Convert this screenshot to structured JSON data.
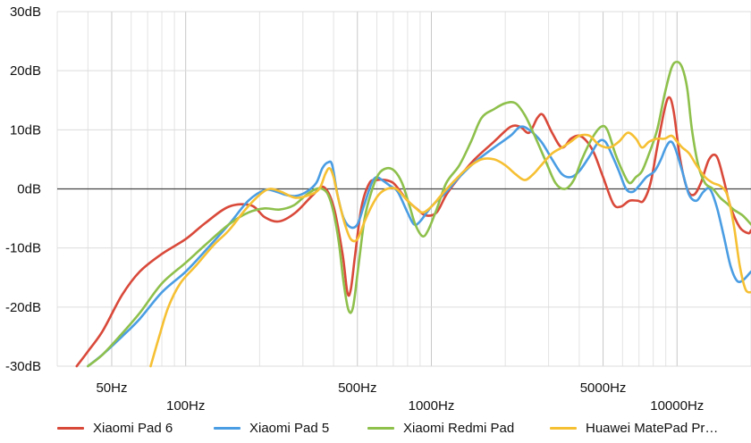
{
  "chart_data": {
    "type": "line",
    "x_scale": "log",
    "xlim": [
      30,
      20000
    ],
    "ylim": [
      -30,
      30
    ],
    "grid": true,
    "legend_position": "bottom",
    "y_ticks": [
      {
        "value": 30,
        "label": "30dB"
      },
      {
        "value": 20,
        "label": "20dB"
      },
      {
        "value": 10,
        "label": "10dB"
      },
      {
        "value": 0,
        "label": "0dB"
      },
      {
        "value": -10,
        "label": "-10dB"
      },
      {
        "value": -20,
        "label": "-20dB"
      },
      {
        "value": -30,
        "label": "-30dB"
      }
    ],
    "x_ticks": [
      {
        "value": 50,
        "label": "50Hz",
        "row": 1
      },
      {
        "value": 100,
        "label": "100Hz",
        "row": 2
      },
      {
        "value": 500,
        "label": "500Hz",
        "row": 1
      },
      {
        "value": 1000,
        "label": "1000Hz",
        "row": 2
      },
      {
        "value": 5000,
        "label": "5000Hz",
        "row": 1
      },
      {
        "value": 10000,
        "label": "10000Hz",
        "row": 2
      }
    ],
    "series": [
      {
        "name": "Xiaomi Pad 6",
        "color": "#d9493a",
        "points": [
          [
            36,
            -30
          ],
          [
            40,
            -27.5
          ],
          [
            46,
            -24
          ],
          [
            55,
            -18
          ],
          [
            65,
            -14
          ],
          [
            80,
            -11
          ],
          [
            100,
            -8.5
          ],
          [
            120,
            -5.8
          ],
          [
            150,
            -3
          ],
          [
            185,
            -2.8
          ],
          [
            210,
            -4.8
          ],
          [
            240,
            -5.5
          ],
          [
            280,
            -4
          ],
          [
            330,
            -1
          ],
          [
            365,
            0.3
          ],
          [
            400,
            -3
          ],
          [
            435,
            -11
          ],
          [
            455,
            -17.5
          ],
          [
            470,
            -17
          ],
          [
            490,
            -11
          ],
          [
            520,
            -3
          ],
          [
            560,
            1
          ],
          [
            600,
            1.5
          ],
          [
            650,
            1.5
          ],
          [
            700,
            1
          ],
          [
            750,
            -0.5
          ],
          [
            800,
            -2
          ],
          [
            880,
            -3.5
          ],
          [
            950,
            -4.5
          ],
          [
            1050,
            -4
          ],
          [
            1150,
            -1
          ],
          [
            1300,
            2
          ],
          [
            1500,
            5
          ],
          [
            1800,
            8
          ],
          [
            2100,
            10.5
          ],
          [
            2300,
            10.5
          ],
          [
            2500,
            9.5
          ],
          [
            2700,
            12
          ],
          [
            2850,
            12.5
          ],
          [
            3100,
            9.5
          ],
          [
            3400,
            7
          ],
          [
            3700,
            8.5
          ],
          [
            4000,
            9
          ],
          [
            4300,
            8
          ],
          [
            4600,
            6
          ],
          [
            5000,
            2
          ],
          [
            5500,
            -2.5
          ],
          [
            5900,
            -3
          ],
          [
            6400,
            -2
          ],
          [
            6900,
            -2
          ],
          [
            7300,
            -2
          ],
          [
            7800,
            1
          ],
          [
            8300,
            7
          ],
          [
            8900,
            13.5
          ],
          [
            9300,
            15.5
          ],
          [
            9700,
            13
          ],
          [
            10300,
            5
          ],
          [
            11000,
            0
          ],
          [
            11700,
            -1
          ],
          [
            12500,
            1
          ],
          [
            13500,
            5
          ],
          [
            14500,
            5.5
          ],
          [
            15500,
            1.5
          ],
          [
            16500,
            -3
          ],
          [
            18000,
            -6.5
          ],
          [
            19500,
            -7.5
          ],
          [
            20000,
            -7
          ]
        ]
      },
      {
        "name": "Xiaomi Pad 5",
        "color": "#4a9de3",
        "points": [
          [
            40,
            -30
          ],
          [
            46,
            -28
          ],
          [
            55,
            -25
          ],
          [
            65,
            -22
          ],
          [
            80,
            -17.5
          ],
          [
            100,
            -14
          ],
          [
            120,
            -10.5
          ],
          [
            150,
            -6
          ],
          [
            180,
            -2
          ],
          [
            210,
            -0.2
          ],
          [
            235,
            -0.5
          ],
          [
            255,
            -1
          ],
          [
            280,
            -1.2
          ],
          [
            310,
            -0.5
          ],
          [
            340,
            1
          ],
          [
            360,
            3.5
          ],
          [
            380,
            4.5
          ],
          [
            395,
            4
          ],
          [
            415,
            -1
          ],
          [
            440,
            -5
          ],
          [
            470,
            -6.5
          ],
          [
            500,
            -6
          ],
          [
            530,
            -3
          ],
          [
            560,
            0
          ],
          [
            580,
            1.5
          ],
          [
            600,
            2
          ],
          [
            630,
            1.5
          ],
          [
            680,
            0.5
          ],
          [
            730,
            -0.5
          ],
          [
            800,
            -4
          ],
          [
            850,
            -6
          ],
          [
            900,
            -5.5
          ],
          [
            1000,
            -3
          ],
          [
            1150,
            -0.5
          ],
          [
            1300,
            2
          ],
          [
            1500,
            4.5
          ],
          [
            1800,
            7
          ],
          [
            2100,
            9
          ],
          [
            2300,
            10.5
          ],
          [
            2500,
            10
          ],
          [
            2800,
            8
          ],
          [
            3100,
            5
          ],
          [
            3400,
            2.5
          ],
          [
            3700,
            2
          ],
          [
            4000,
            3
          ],
          [
            4400,
            5.5
          ],
          [
            4800,
            8
          ],
          [
            5100,
            8
          ],
          [
            5400,
            6
          ],
          [
            5800,
            3
          ],
          [
            6200,
            0
          ],
          [
            6600,
            -0.5
          ],
          [
            7000,
            0.5
          ],
          [
            7500,
            2
          ],
          [
            8100,
            3
          ],
          [
            8600,
            5
          ],
          [
            9000,
            7
          ],
          [
            9400,
            8
          ],
          [
            9800,
            7
          ],
          [
            10500,
            3
          ],
          [
            11200,
            -1
          ],
          [
            12000,
            -2
          ],
          [
            12800,
            -0.5
          ],
          [
            13600,
            0
          ],
          [
            14500,
            -3
          ],
          [
            15500,
            -8
          ],
          [
            16500,
            -13
          ],
          [
            17500,
            -15.5
          ],
          [
            18500,
            -15.5
          ],
          [
            20000,
            -14
          ]
        ]
      },
      {
        "name": "Xiaomi Redmi Pad",
        "color": "#8ec04c",
        "points": [
          [
            40,
            -30
          ],
          [
            46,
            -28
          ],
          [
            55,
            -24.5
          ],
          [
            65,
            -21
          ],
          [
            80,
            -16
          ],
          [
            100,
            -12.5
          ],
          [
            120,
            -9.5
          ],
          [
            150,
            -6
          ],
          [
            180,
            -4
          ],
          [
            210,
            -3.3
          ],
          [
            240,
            -3.5
          ],
          [
            275,
            -2.8
          ],
          [
            310,
            -1
          ],
          [
            340,
            0
          ],
          [
            360,
            0
          ],
          [
            380,
            -1
          ],
          [
            400,
            -4
          ],
          [
            420,
            -9
          ],
          [
            440,
            -16
          ],
          [
            460,
            -20.5
          ],
          [
            480,
            -20
          ],
          [
            505,
            -13
          ],
          [
            535,
            -5
          ],
          [
            570,
            -0.5
          ],
          [
            610,
            2.5
          ],
          [
            660,
            3.5
          ],
          [
            710,
            3
          ],
          [
            760,
            1
          ],
          [
            810,
            -2.5
          ],
          [
            860,
            -6
          ],
          [
            920,
            -8
          ],
          [
            970,
            -7
          ],
          [
            1050,
            -3.5
          ],
          [
            1150,
            1
          ],
          [
            1300,
            4
          ],
          [
            1450,
            8
          ],
          [
            1600,
            12
          ],
          [
            1800,
            13.5
          ],
          [
            2000,
            14.5
          ],
          [
            2200,
            14.5
          ],
          [
            2400,
            12.5
          ],
          [
            2600,
            9.5
          ],
          [
            2900,
            5
          ],
          [
            3200,
            1
          ],
          [
            3500,
            0
          ],
          [
            3800,
            1.5
          ],
          [
            4100,
            5
          ],
          [
            4500,
            8.5
          ],
          [
            4900,
            10.5
          ],
          [
            5200,
            10
          ],
          [
            5600,
            6
          ],
          [
            6000,
            3
          ],
          [
            6400,
            1
          ],
          [
            6800,
            2
          ],
          [
            7200,
            3
          ],
          [
            7700,
            6
          ],
          [
            8300,
            10
          ],
          [
            8900,
            16
          ],
          [
            9500,
            20.5
          ],
          [
            10000,
            21.5
          ],
          [
            10500,
            20.5
          ],
          [
            11000,
            17
          ],
          [
            11500,
            10
          ],
          [
            12200,
            4
          ],
          [
            13000,
            1
          ],
          [
            14000,
            0
          ],
          [
            15000,
            -1.5
          ],
          [
            16000,
            -2.5
          ],
          [
            17000,
            -3.5
          ],
          [
            18500,
            -4.5
          ],
          [
            20000,
            -6
          ]
        ]
      },
      {
        "name": "Huawei MatePad Pr…",
        "color": "#f6c033",
        "points": [
          [
            72,
            -30
          ],
          [
            78,
            -25
          ],
          [
            85,
            -20
          ],
          [
            95,
            -16
          ],
          [
            110,
            -13
          ],
          [
            130,
            -9.5
          ],
          [
            150,
            -7
          ],
          [
            175,
            -3.5
          ],
          [
            200,
            -1
          ],
          [
            220,
            0
          ],
          [
            245,
            -0.5
          ],
          [
            280,
            -1.5
          ],
          [
            320,
            -1
          ],
          [
            350,
            0
          ],
          [
            370,
            2.5
          ],
          [
            385,
            3.5
          ],
          [
            400,
            2
          ],
          [
            420,
            -2
          ],
          [
            445,
            -6
          ],
          [
            470,
            -8.5
          ],
          [
            500,
            -8.5
          ],
          [
            535,
            -5.5
          ],
          [
            570,
            -3
          ],
          [
            610,
            -1
          ],
          [
            660,
            0
          ],
          [
            720,
            0
          ],
          [
            780,
            -1.5
          ],
          [
            850,
            -3
          ],
          [
            920,
            -4
          ],
          [
            1000,
            -3
          ],
          [
            1100,
            -1
          ],
          [
            1250,
            1.5
          ],
          [
            1400,
            3.5
          ],
          [
            1600,
            5
          ],
          [
            1800,
            5
          ],
          [
            2000,
            4
          ],
          [
            2200,
            2.5
          ],
          [
            2400,
            1.5
          ],
          [
            2600,
            2.5
          ],
          [
            2800,
            4
          ],
          [
            3100,
            6
          ],
          [
            3400,
            7
          ],
          [
            3700,
            8
          ],
          [
            4000,
            9
          ],
          [
            4400,
            9
          ],
          [
            4800,
            7.5
          ],
          [
            5300,
            7
          ],
          [
            5800,
            8
          ],
          [
            6300,
            9.5
          ],
          [
            6800,
            8.5
          ],
          [
            7200,
            7
          ],
          [
            7700,
            8
          ],
          [
            8300,
            8.5
          ],
          [
            8900,
            8.5
          ],
          [
            9500,
            9
          ],
          [
            10000,
            8
          ],
          [
            10500,
            7
          ],
          [
            11200,
            6
          ],
          [
            12000,
            4
          ],
          [
            13000,
            2
          ],
          [
            14000,
            1
          ],
          [
            15000,
            0.5
          ],
          [
            16000,
            -1
          ],
          [
            17000,
            -6
          ],
          [
            18000,
            -13
          ],
          [
            19000,
            -17
          ],
          [
            20000,
            -17.5
          ]
        ]
      }
    ]
  }
}
